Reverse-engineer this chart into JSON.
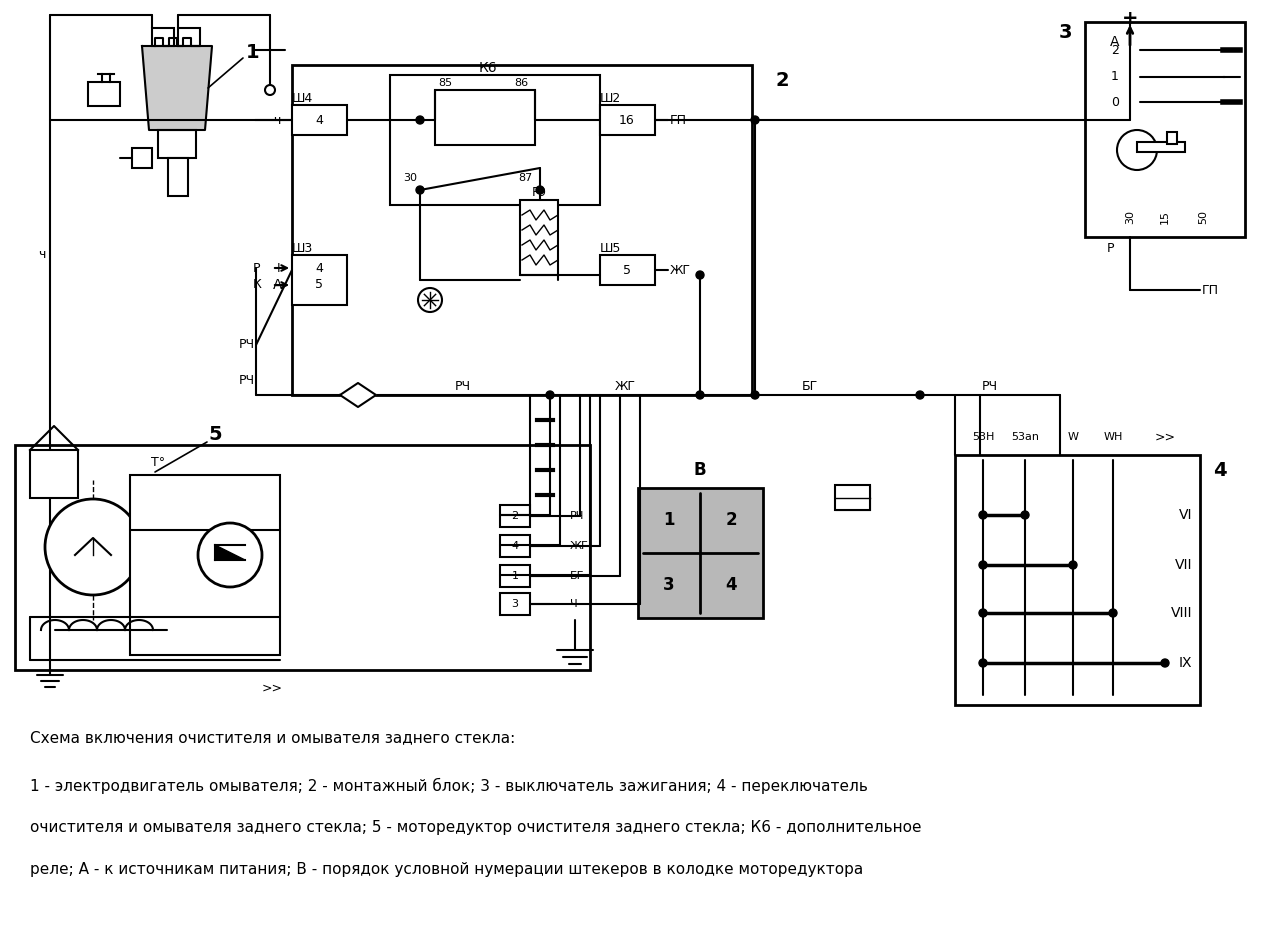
{
  "bg_color": "#ffffff",
  "line_color": "#000000",
  "title_line1": "Схема включения очистителя и омывателя заднего стекла:",
  "desc_line1": "1 - электродвигатель омывателя; 2 - монтажный блок; 3 - выключатель зажигания; 4 - переключатель",
  "desc_line2": "очистителя и омывателя заднего стекла; 5 - моторедуктор очистителя заднего стекла; К6 - дополнительное",
  "desc_line3": "реле; А - к источникам питания; В - порядок условной нумерации штекеров в колодке моторедуктора",
  "figsize": [
    12.79,
    9.36
  ],
  "dpi": 100
}
